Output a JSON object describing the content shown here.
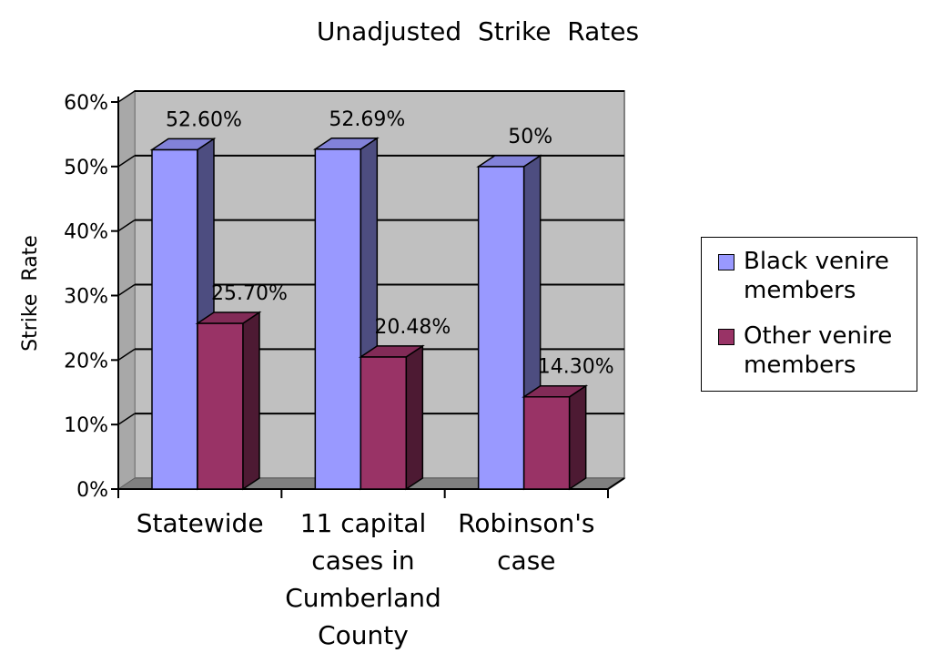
{
  "chart_data": {
    "type": "bar",
    "title": "Unadjusted  Strike  Rates",
    "xlabel": "",
    "ylabel": "Strike  Rate",
    "categories": [
      "Statewide",
      "11 capital cases in Cumberland County",
      "Robinson's case"
    ],
    "category_lines": [
      [
        "Statewide"
      ],
      [
        "11 capital",
        "cases in",
        "Cumberland",
        "County"
      ],
      [
        "Robinson's",
        "case"
      ]
    ],
    "series": [
      {
        "name": "Black venire members",
        "values": [
          52.6,
          52.69,
          50
        ],
        "labels": [
          "52.60%",
          "52.69%",
          "50%"
        ],
        "color": "#9999ff"
      },
      {
        "name": "Other venire members",
        "values": [
          25.7,
          20.48,
          14.3
        ],
        "labels": [
          "25.70%",
          "20.48%",
          "14.30%"
        ],
        "color": "#993366"
      }
    ],
    "ylim": [
      0,
      60
    ],
    "yticks": [
      "0%",
      "10%",
      "20%",
      "30%",
      "40%",
      "50%",
      "60%"
    ],
    "grid": true,
    "legend_position": "right",
    "style": "3d-clustered-column"
  },
  "legend": {
    "items": [
      {
        "label": "Black venire members",
        "color": "#9999ff"
      },
      {
        "label": "Other venire members",
        "color": "#993366"
      }
    ]
  }
}
